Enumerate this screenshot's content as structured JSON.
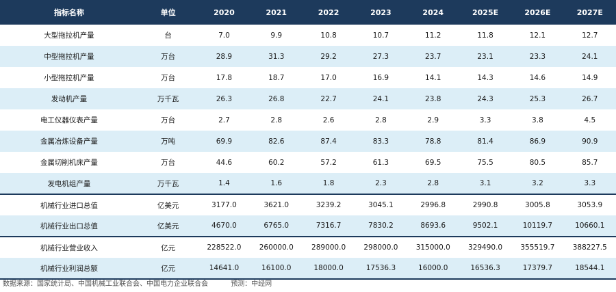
{
  "header": [
    "指标名称",
    "单位",
    "2020",
    "2021",
    "2022",
    "2023",
    "2024",
    "2025E",
    "2026E",
    "2027E"
  ],
  "rows": [
    {
      "name": "大型拖拉机产量",
      "unit": "台",
      "values": [
        "7.0",
        "9.9",
        "10.8",
        "10.7",
        "11.2",
        "11.8",
        "12.1",
        "12.7"
      ]
    },
    {
      "name": "中型拖拉机产量",
      "unit": "万台",
      "values": [
        "28.9",
        "31.3",
        "29.2",
        "27.3",
        "23.7",
        "23.1",
        "23.3",
        "24.1"
      ]
    },
    {
      "name": "小型拖拉机产量",
      "unit": "万台",
      "values": [
        "17.8",
        "18.7",
        "17.0",
        "16.9",
        "14.1",
        "14.3",
        "14.6",
        "14.9"
      ]
    },
    {
      "name": "发动机产量",
      "unit": "万千瓦",
      "values": [
        "26.3",
        "26.8",
        "22.7",
        "24.1",
        "23.8",
        "24.3",
        "25.3",
        "26.7"
      ]
    },
    {
      "name": "电工仪器仪表产量",
      "unit": "万台",
      "values": [
        "2.7",
        "2.8",
        "2.6",
        "2.8",
        "2.9",
        "3.3",
        "3.8",
        "4.5"
      ]
    },
    {
      "name": "金属冶炼设备产量",
      "unit": "万吨",
      "values": [
        "69.9",
        "82.6",
        "87.4",
        "83.3",
        "78.8",
        "81.4",
        "86.9",
        "90.9"
      ]
    },
    {
      "name": "金属切削机床产量",
      "unit": "万台",
      "values": [
        "44.6",
        "60.2",
        "57.2",
        "61.3",
        "69.5",
        "75.5",
        "80.5",
        "85.7"
      ]
    },
    {
      "name": "发电机组产量",
      "unit": "万千瓦",
      "values": [
        "1.4",
        "1.6",
        "1.8",
        "2.3",
        "2.8",
        "3.1",
        "3.2",
        "3.3"
      ]
    },
    {
      "name": "机械行业进口总值",
      "unit": "亿美元",
      "values": [
        "3177.0",
        "3621.0",
        "3239.2",
        "3045.1",
        "2996.8",
        "2990.8",
        "3005.8",
        "3053.9"
      ]
    },
    {
      "name": "机械行业出口总值",
      "unit": "亿美元",
      "values": [
        "4670.0",
        "6765.0",
        "7316.7",
        "7830.2",
        "8693.6",
        "9502.1",
        "10119.7",
        "10660.1"
      ]
    },
    {
      "name": "机械行业营业收入",
      "unit": "亿元",
      "values": [
        "228522.0",
        "260000.0",
        "289000.0",
        "298000.0",
        "315000.0",
        "329490.0",
        "355519.7",
        "388227.5"
      ]
    },
    {
      "name": "机械行业利润总额",
      "unit": "亿元",
      "values": [
        "14641.0",
        "16100.0",
        "18000.0",
        "17536.3",
        "16000.0",
        "16536.3",
        "17379.7",
        "18544.1"
      ]
    }
  ],
  "footer": {
    "source": "数据来源：国家统计局、中国机械工业联合会、中国电力企业联合会",
    "forecast": "预测：中经网"
  },
  "colors": {
    "header_bg": "#1d3a5c",
    "header_text": "#ffffff",
    "alt_row": "#dceef7"
  }
}
